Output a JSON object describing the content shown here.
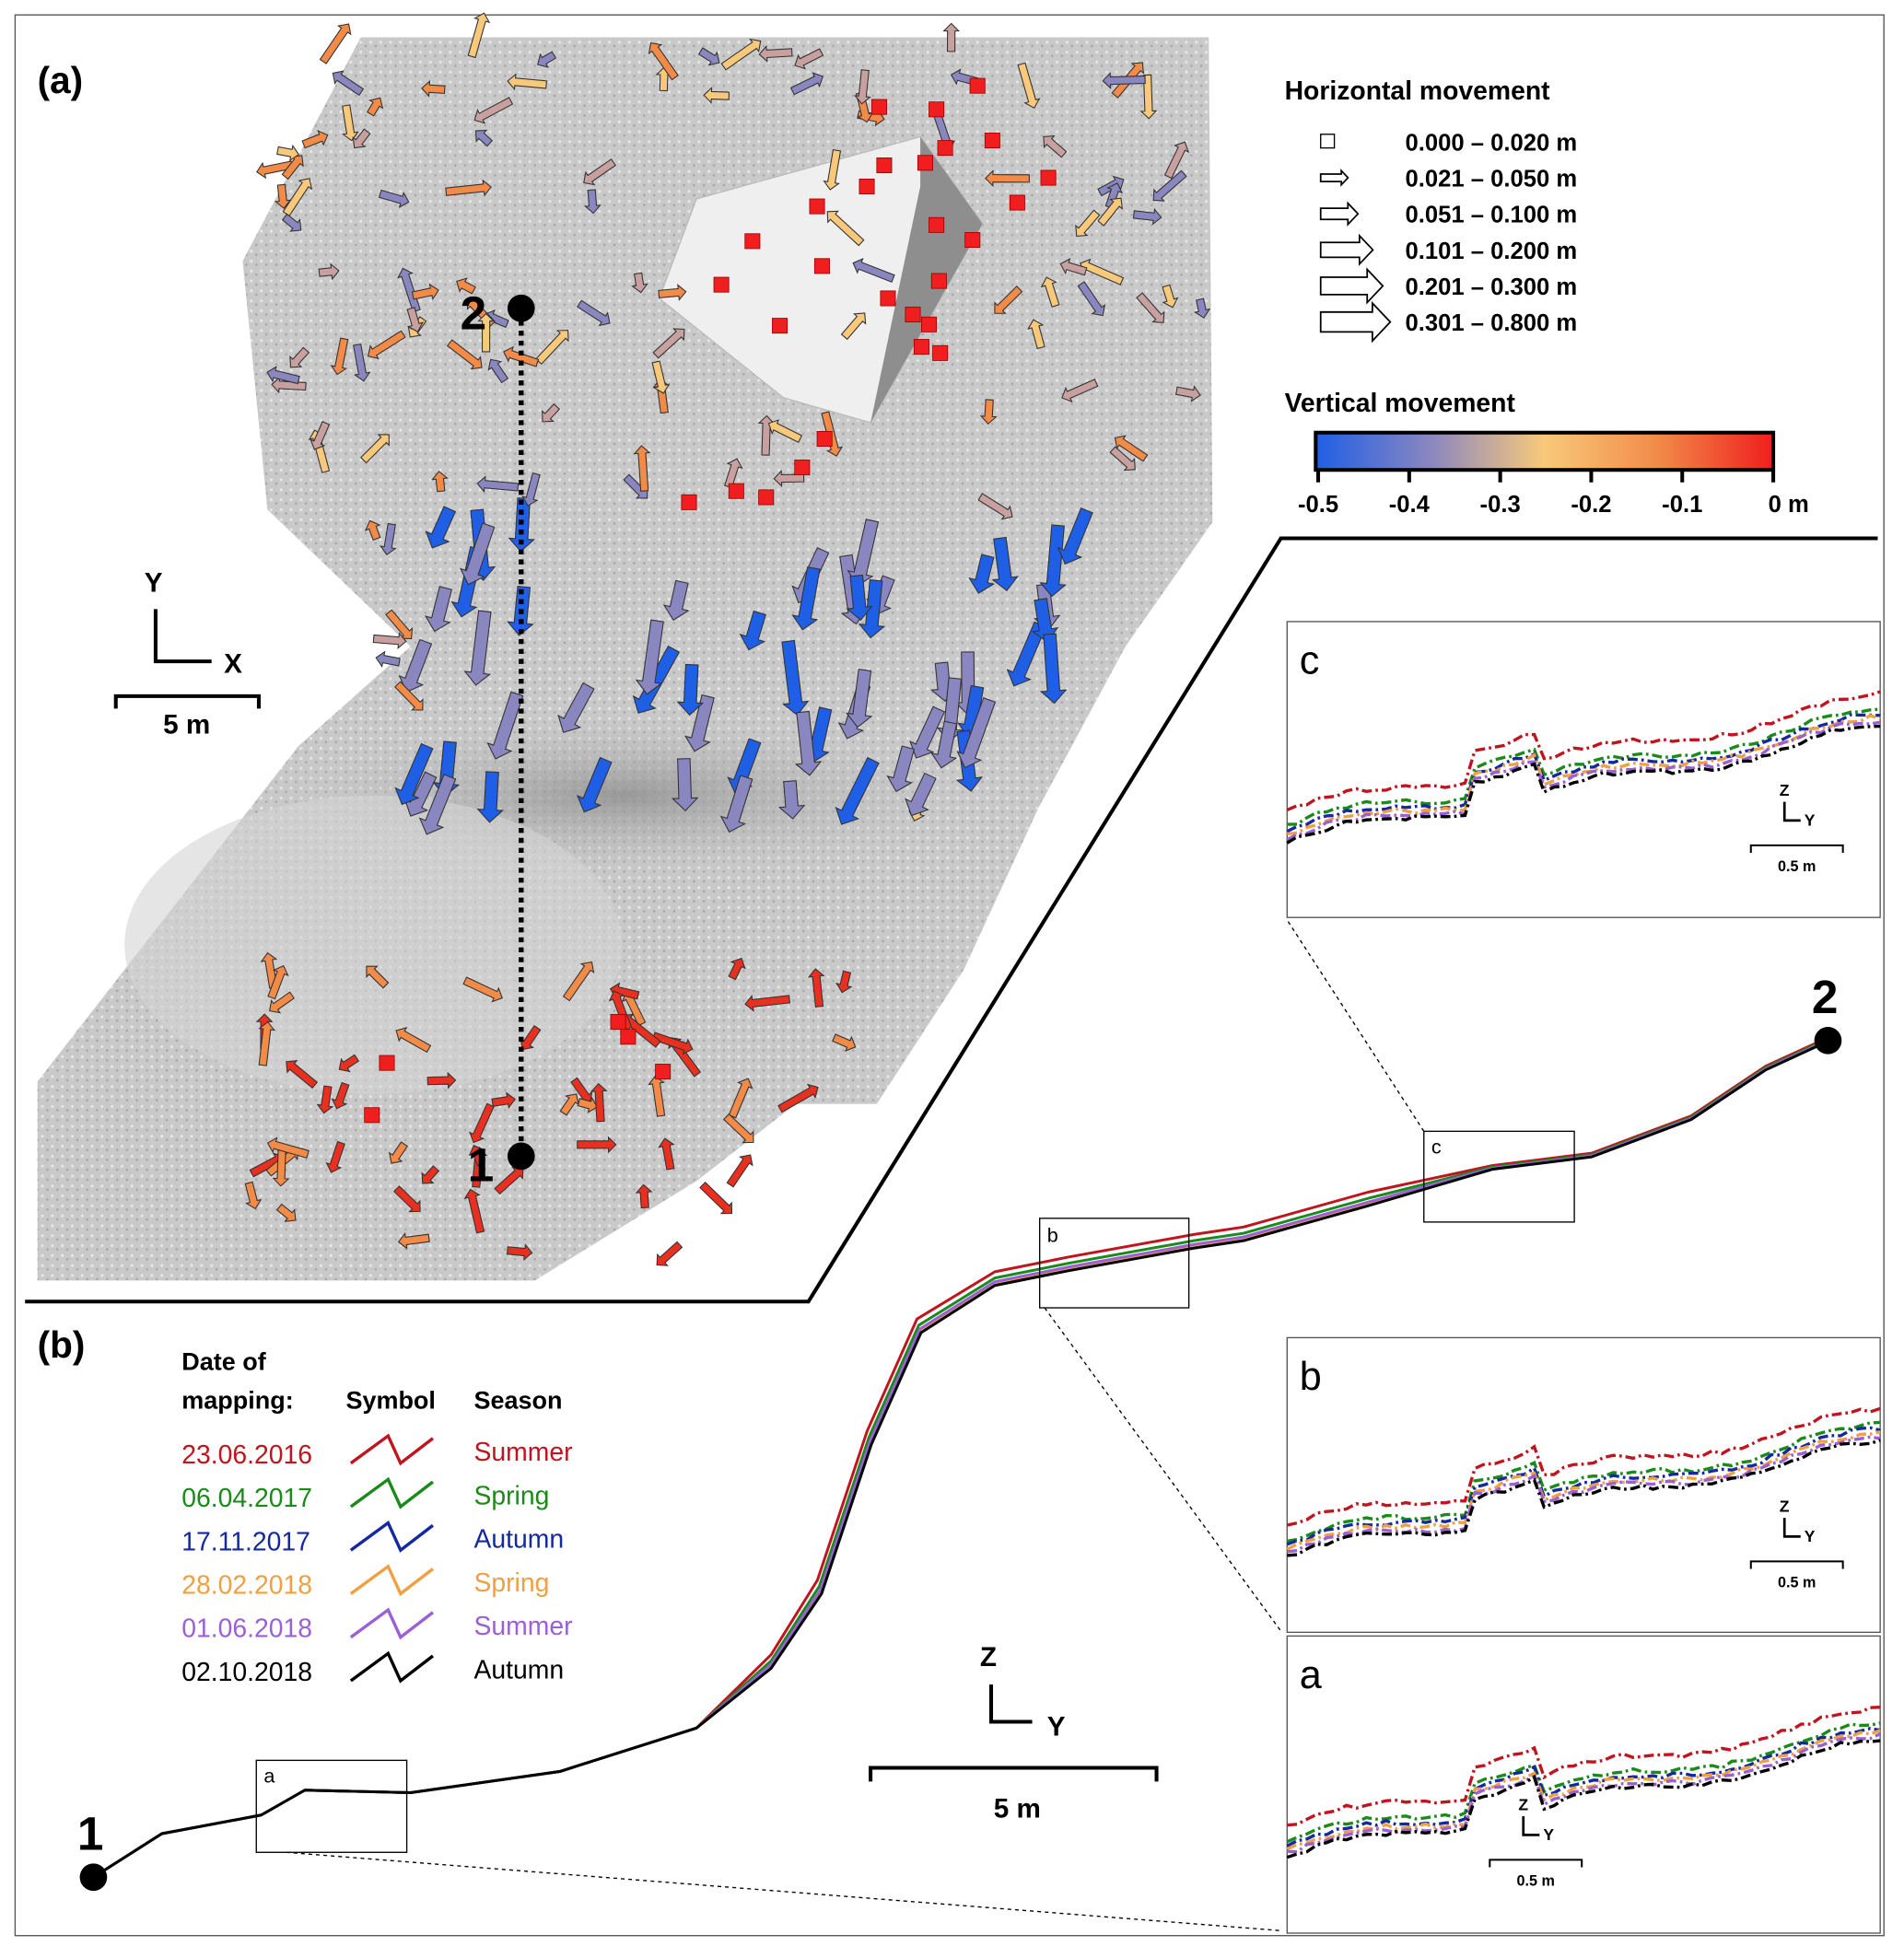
{
  "panel_a": {
    "label": "(a)",
    "point_1": "1",
    "point_2": "2",
    "axis_y": "Y",
    "axis_x": "X",
    "scale": "5 m"
  },
  "horizontal_legend": {
    "title": "Horizontal movement",
    "classes": [
      "0.000 – 0.020 m",
      "0.021 – 0.050 m",
      "0.051 – 0.100 m",
      "0.101 – 0.200 m",
      "0.201 – 0.300 m",
      "0.301 – 0.800 m"
    ]
  },
  "vertical_legend": {
    "title": "Vertical movement",
    "ticks": [
      "-0.5",
      "-0.4",
      "-0.3",
      "-0.2",
      "-0.1",
      "0 m"
    ],
    "colors": [
      "#1f5fe6",
      "#8a86c0",
      "#f8c97a",
      "#f28a48",
      "#f01e1e"
    ]
  },
  "panel_b": {
    "label": "(b)",
    "point_1": "1",
    "point_2": "2",
    "axis_z": "Z",
    "axis_y": "Y",
    "scale": "5 m",
    "box_labels": [
      "a",
      "b",
      "c"
    ],
    "legend": {
      "col_date": "Date of mapping:",
      "col_date_1": "Date of",
      "col_date_2": "mapping:",
      "col_symbol": "Symbol",
      "col_season": "Season",
      "rows": [
        {
          "date": "23.06.2016",
          "season": "Summer",
          "color": "#c0141e"
        },
        {
          "date": "06.04.2017",
          "season": "Spring",
          "color": "#1a8a1a"
        },
        {
          "date": "17.11.2017",
          "season": "Autumn",
          "color": "#1428a0"
        },
        {
          "date": "28.02.2018",
          "season": "Spring",
          "color": "#f0a040"
        },
        {
          "date": "01.06.2018",
          "season": "Summer",
          "color": "#9b5fd6"
        },
        {
          "date": "02.10.2018",
          "season": "Autumn",
          "color": "#000000"
        }
      ]
    }
  },
  "insets": {
    "c": {
      "label": "c",
      "axis_z": "Z",
      "axis_y": "Y",
      "scale": "0.5 m"
    },
    "b": {
      "label": "b",
      "axis_z": "Z",
      "axis_y": "Y",
      "scale": "0.5 m"
    },
    "a": {
      "label": "a",
      "axis_z": "Z",
      "axis_y": "Y",
      "scale": "0.5 m"
    }
  }
}
